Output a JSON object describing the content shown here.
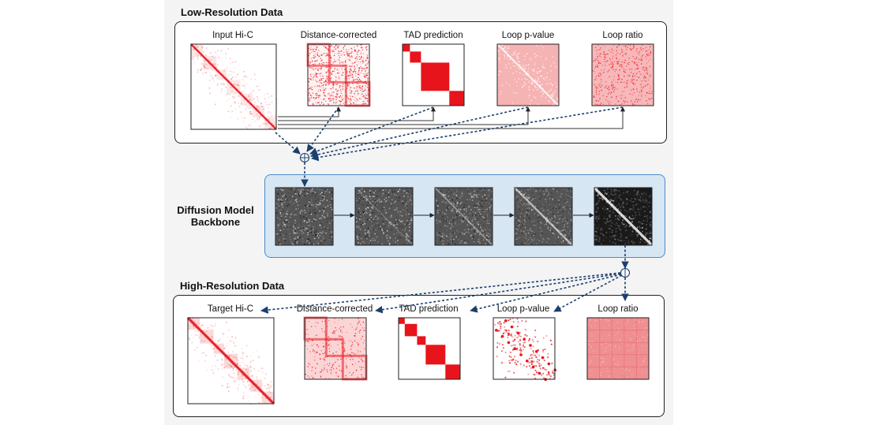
{
  "low_res": {
    "title": "Low-Resolution Data",
    "maps": [
      {
        "label": "Input Hi-C",
        "kind": "hic-input"
      },
      {
        "label": "Distance-corrected",
        "kind": "distance-corrected"
      },
      {
        "label": "TAD prediction",
        "kind": "tad"
      },
      {
        "label": "Loop p-value",
        "kind": "loop-pvalue"
      },
      {
        "label": "Loop ratio",
        "kind": "loop-ratio"
      }
    ]
  },
  "backbone": {
    "label_line1": "Diffusion Model",
    "label_line2": "Backbone",
    "denoise_steps": [
      0.0,
      0.1,
      0.3,
      0.55,
      0.85
    ]
  },
  "high_res": {
    "title": "High-Resolution Data",
    "maps": [
      {
        "label": "Target Hi-C",
        "kind": "hic-target"
      },
      {
        "label": "Distance-corrected",
        "kind": "distance-corrected-hr"
      },
      {
        "label": "TAD prediction",
        "kind": "tad-hr"
      },
      {
        "label": "Loop p-value",
        "kind": "loop-pvalue-hr"
      },
      {
        "label": "Loop ratio",
        "kind": "loop-ratio-hr"
      }
    ]
  },
  "symbols": {
    "concat": "concat-plus-icon"
  },
  "colors": {
    "accent_red": "#e8141b",
    "backbone_fill": "#d6e6f3",
    "backbone_border": "#4a8dc9",
    "arrow_dark_blue": "#1c3f6e"
  }
}
